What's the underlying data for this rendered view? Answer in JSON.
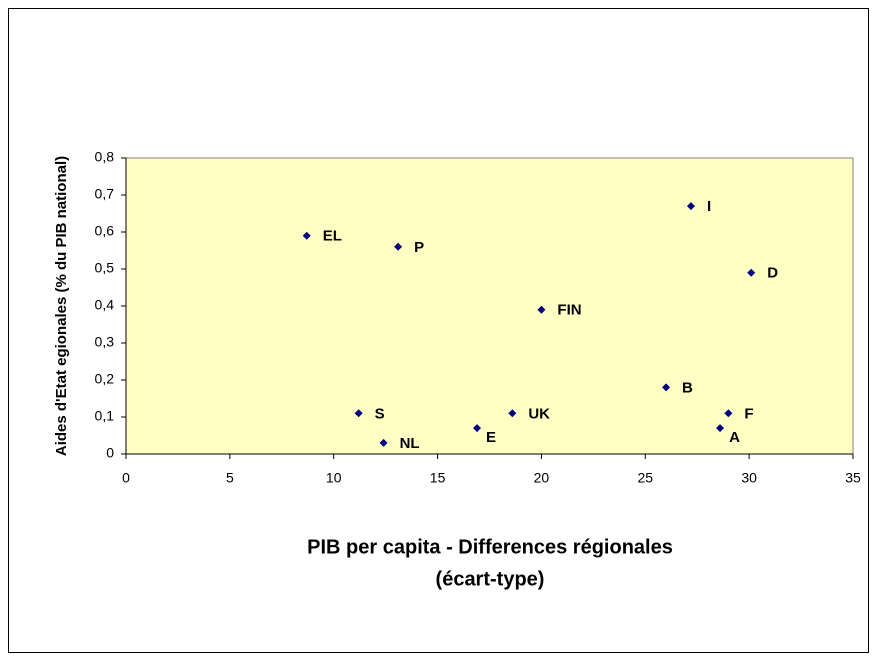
{
  "chart_data": {
    "type": "scatter",
    "xlabel": [
      "PIB per capita - Differences régionales",
      "(écart-type)"
    ],
    "ylabel": "Aides d'Etat egionales (% du PIB national)",
    "labels": [
      "EL",
      "P",
      "I",
      "D",
      "FIN",
      "B",
      "S",
      "UK",
      "F",
      "E",
      "A",
      "NL"
    ],
    "x": [
      8.7,
      13.1,
      27.2,
      30.1,
      20.0,
      26.0,
      11.2,
      18.6,
      29.0,
      16.9,
      28.6,
      12.4
    ],
    "y": [
      0.59,
      0.56,
      0.67,
      0.49,
      0.39,
      0.18,
      0.11,
      0.11,
      0.11,
      0.07,
      0.07,
      0.03
    ],
    "color": "#000080",
    "xlim": [
      0,
      35
    ],
    "xticks": [
      0,
      5,
      10,
      15,
      20,
      25,
      30,
      35
    ],
    "ylim": [
      0,
      0.8
    ],
    "yticks": [
      0,
      {
        "value": 0.1,
        "label": "0,1"
      },
      {
        "value": 0.2,
        "label": "0,2"
      },
      {
        "value": 0.3,
        "label": "0,3"
      },
      {
        "value": 0.4,
        "label": "0,4"
      },
      {
        "value": 0.5,
        "label": "0,5"
      },
      {
        "value": 0.6,
        "label": "0,6"
      },
      {
        "value": 0.7,
        "label": "0,7"
      },
      {
        "value": 0.8,
        "label": "0,8"
      }
    ]
  }
}
